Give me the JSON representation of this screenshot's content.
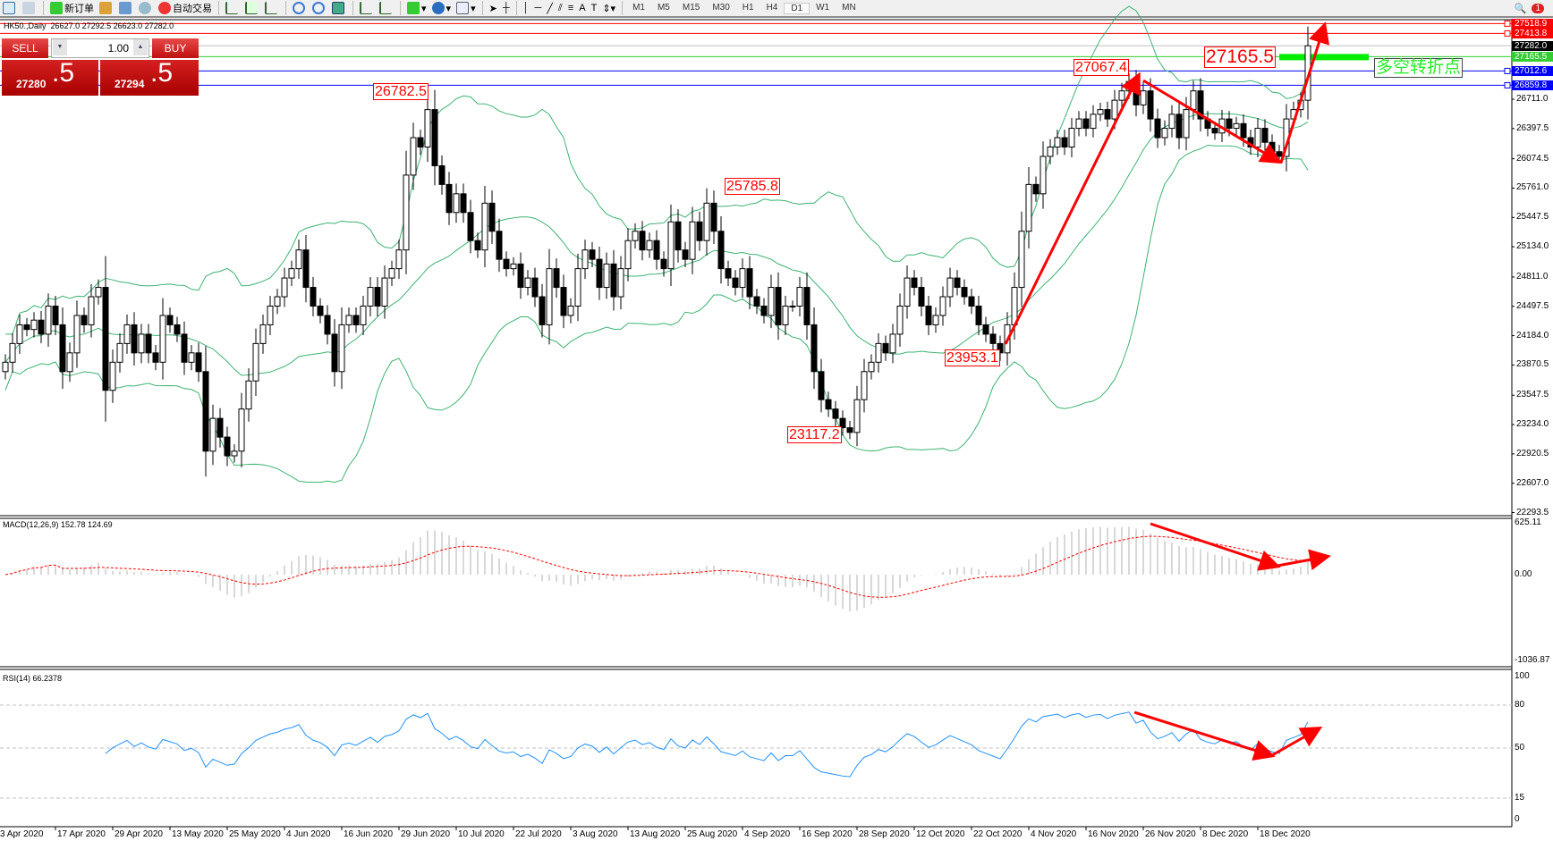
{
  "toolbar": {
    "new_order": "新订单",
    "auto_trade": "自动交易",
    "timeframes": [
      "M1",
      "M5",
      "M15",
      "M30",
      "H1",
      "H4",
      "D1",
      "W1",
      "MN"
    ],
    "active_timeframe": "D1",
    "notification_count": "1"
  },
  "header": {
    "symbol": "HK50.,Daily",
    "ohlc": "26627.0 27292.5 26623.0 27282.0"
  },
  "trade_panel": {
    "sell_label": "SELL",
    "buy_label": "BUY",
    "lot": "1.00",
    "sell_main": "27280",
    "sell_frac": ".5",
    "buy_main": "27294",
    "buy_frac": ".5"
  },
  "price_axis": {
    "ticks": [
      "26711.0",
      "26397.5",
      "26074.5",
      "25761.0",
      "25447.5",
      "25134.0",
      "24811.0",
      "24497.5",
      "24184.0",
      "23870.5",
      "23547.5",
      "23234.0",
      "22920.5",
      "22607.0",
      "22293.5"
    ]
  },
  "levels": [
    {
      "value": "27518.9",
      "color": "#ff0000"
    },
    {
      "value": "27413.8",
      "color": "#ff0000"
    },
    {
      "value": "27282.0",
      "color": "#000000"
    },
    {
      "value": "27165.5",
      "color": "#33cc33"
    },
    {
      "value": "27012.6",
      "color": "#0000ff"
    },
    {
      "value": "26859.8",
      "color": "#0000ff"
    }
  ],
  "annotations": {
    "high1": "26782.5",
    "high2": "25785.8",
    "low1": "23117.2",
    "low2": "23953.1",
    "high3": "27067.4",
    "pivot": "27165.5",
    "pivot_text": "多空转折点"
  },
  "macd": {
    "label": "MACD(12,26,9) 152.78 124.69",
    "max": "625.11",
    "zero": "0.00",
    "min": "-1036.87"
  },
  "rsi": {
    "label": "RSI(14) 66.2378",
    "levels": [
      "100",
      "80",
      "50",
      "15",
      "0"
    ]
  },
  "dates": [
    "3 Apr 2020",
    "17 Apr 2020",
    "29 Apr 2020",
    "13 May 2020",
    "25 May 2020",
    "4 Jun 2020",
    "16 Jun 2020",
    "29 Jun 2020",
    "10 Jul 2020",
    "22 Jul 2020",
    "3 Aug 2020",
    "13 Aug 2020",
    "25 Aug 2020",
    "4 Sep 2020",
    "16 Sep 2020",
    "28 Sep 2020",
    "12 Oct 2020",
    "22 Oct 2020",
    "4 Nov 2020",
    "16 Nov 2020",
    "26 Nov 2020",
    "8 Dec 2020",
    "18 Dec 2020"
  ],
  "colors": {
    "bands": "#3cb371",
    "macd_hist": "#b0b0b0",
    "macd_signal": "#ff0000",
    "rsi": "#1e90ff",
    "arrows": "#ff0000"
  },
  "chart_data": {
    "type": "candlestick",
    "symbol": "HK50",
    "timeframe": "Daily",
    "indicators": [
      "Bollinger Bands",
      "MACD(12,26,9)",
      "RSI(14)"
    ],
    "ylim": [
      22293.5,
      27518.9
    ],
    "close": [
      23900,
      24100,
      24300,
      24250,
      24350,
      24200,
      24500,
      24300,
      23800,
      24000,
      24400,
      24300,
      24600,
      24700,
      23600,
      23900,
      24100,
      24300,
      24000,
      24200,
      24000,
      23900,
      24400,
      24300,
      24200,
      23900,
      24000,
      23800,
      22950,
      23300,
      23100,
      22900,
      22950,
      23400,
      23700,
      24100,
      24300,
      24500,
      24600,
      24800,
      24900,
      25100,
      24700,
      24500,
      24400,
      24200,
      23800,
      24300,
      24400,
      24300,
      24500,
      24700,
      24500,
      24800,
      24900,
      25100,
      25900,
      26300,
      26200,
      26600,
      26000,
      25800,
      25500,
      25700,
      25500,
      25200,
      25100,
      25600,
      25300,
      25000,
      24900,
      24950,
      24700,
      24800,
      24600,
      24300,
      24900,
      24700,
      24400,
      24500,
      24900,
      25100,
      25000,
      24700,
      24950,
      24600,
      24900,
      25200,
      25300,
      25100,
      25200,
      25000,
      24900,
      25400,
      25100,
      25000,
      25400,
      25200,
      25600,
      25300,
      24900,
      24800,
      24700,
      24900,
      24600,
      24500,
      24400,
      24700,
      24300,
      24500,
      24500,
      24700,
      24300,
      23800,
      23500,
      23400,
      23300,
      23200,
      23150,
      23500,
      23800,
      23900,
      24100,
      24000,
      24200,
      24500,
      24800,
      24700,
      24500,
      24300,
      24400,
      24600,
      24800,
      24700,
      24600,
      24500,
      24300,
      24200,
      24100,
      24000,
      24300,
      24700,
      25300,
      25800,
      25700,
      26100,
      26200,
      26300,
      26200,
      26400,
      26500,
      26400,
      26550,
      26600,
      26500,
      26700,
      26800,
      26900,
      26650,
      26800,
      26500,
      26300,
      26400,
      26550,
      26300,
      26600,
      26800,
      26500,
      26400,
      26350,
      26500,
      26400,
      26450,
      26300,
      26200,
      26400,
      26250,
      26150,
      26100,
      26500,
      26600,
      26700,
      27282
    ]
  }
}
